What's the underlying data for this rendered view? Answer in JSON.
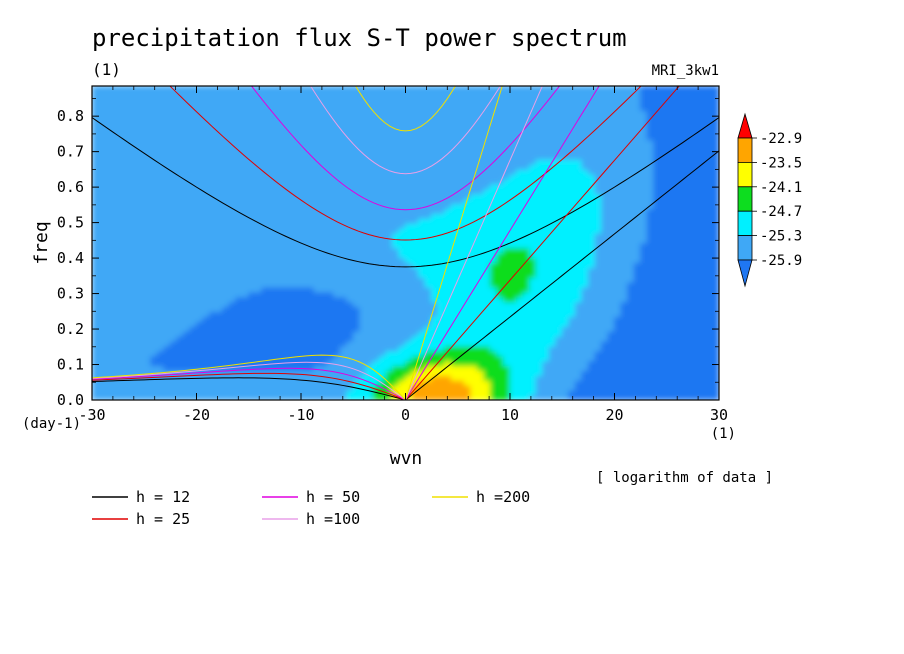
{
  "chart_data": {
    "type": "heatmap",
    "title": "precipitation flux S-T power spectrum",
    "subtitle_left": "(1)",
    "subtitle_right": "MRI_3kw1",
    "xlabel": "wvn",
    "ylabel": "freq",
    "x_unit": "(1)",
    "y_unit": "(day-1)",
    "xlim": [
      -30,
      30
    ],
    "ylim": [
      0,
      0.885
    ],
    "x_ticks": [
      -30,
      -20,
      -10,
      0,
      10,
      20,
      30
    ],
    "y_ticks": [
      "0.0",
      "0.1",
      "0.2",
      "0.3",
      "0.4",
      "0.5",
      "0.6",
      "0.7",
      "0.8"
    ],
    "note": "[ logarithm of data ]",
    "colorbar": {
      "labels": [
        "-22.9",
        "-23.5",
        "-24.1",
        "-24.7",
        "-25.3",
        "-25.9"
      ],
      "levels": [
        -25.9,
        -25.3,
        -24.7,
        -24.1,
        -23.5,
        -22.9
      ],
      "colors": [
        "#1f77f2",
        "#3fa8f6",
        "#00f0ff",
        "#0ddd1f",
        "#ffff00",
        "#ffa500",
        "#ff0000"
      ]
    },
    "field_shape": "peak near wvn 4, freq 0.04; ridge extending to positive wvn along Kelvin-wave dispersion",
    "dispersion_curves": [
      {
        "label": "h = 12",
        "h": 12,
        "color": "#000000"
      },
      {
        "label": "h = 25",
        "h": 25,
        "color": "#e00000"
      },
      {
        "label": "h = 50",
        "h": 50,
        "color": "#e000e0"
      },
      {
        "label": "h =100",
        "h": 100,
        "color": "#e8a0e8"
      },
      {
        "label": "h =200",
        "h": 200,
        "color": "#f0e000"
      }
    ]
  }
}
